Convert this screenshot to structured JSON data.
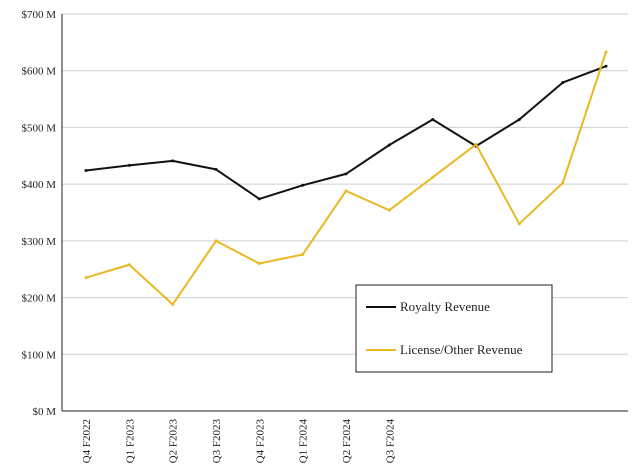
{
  "chart_data": {
    "type": "line",
    "title": "",
    "xlabel": "",
    "ylabel": "",
    "categories": [
      "Q4 F2022",
      "Q1 F2023",
      "Q2 F2023",
      "Q3 F2023",
      "Q4 F2023",
      "Q1 F2024",
      "Q2 F2024",
      "Q3 F2024",
      "",
      "",
      "",
      "",
      ""
    ],
    "y_ticks": [
      "$0 M",
      "$100 M",
      "$200 M",
      "$300 M",
      "$400 M",
      "$500 M",
      "$600 M",
      "$700 M"
    ],
    "ylim": [
      0,
      700
    ],
    "grid": "horizontal",
    "legend_position": "lower-right",
    "series": [
      {
        "name": "Royalty Revenue",
        "color": "#111111",
        "values": [
          424,
          433,
          441,
          426,
          374,
          398,
          418,
          469,
          514,
          467,
          514,
          579,
          608
        ]
      },
      {
        "name": "License/Other Revenue",
        "color": "#e8b923",
        "values": [
          235,
          258,
          188,
          300,
          260,
          276,
          388,
          354,
          412,
          470,
          330,
          402,
          633
        ]
      }
    ]
  }
}
